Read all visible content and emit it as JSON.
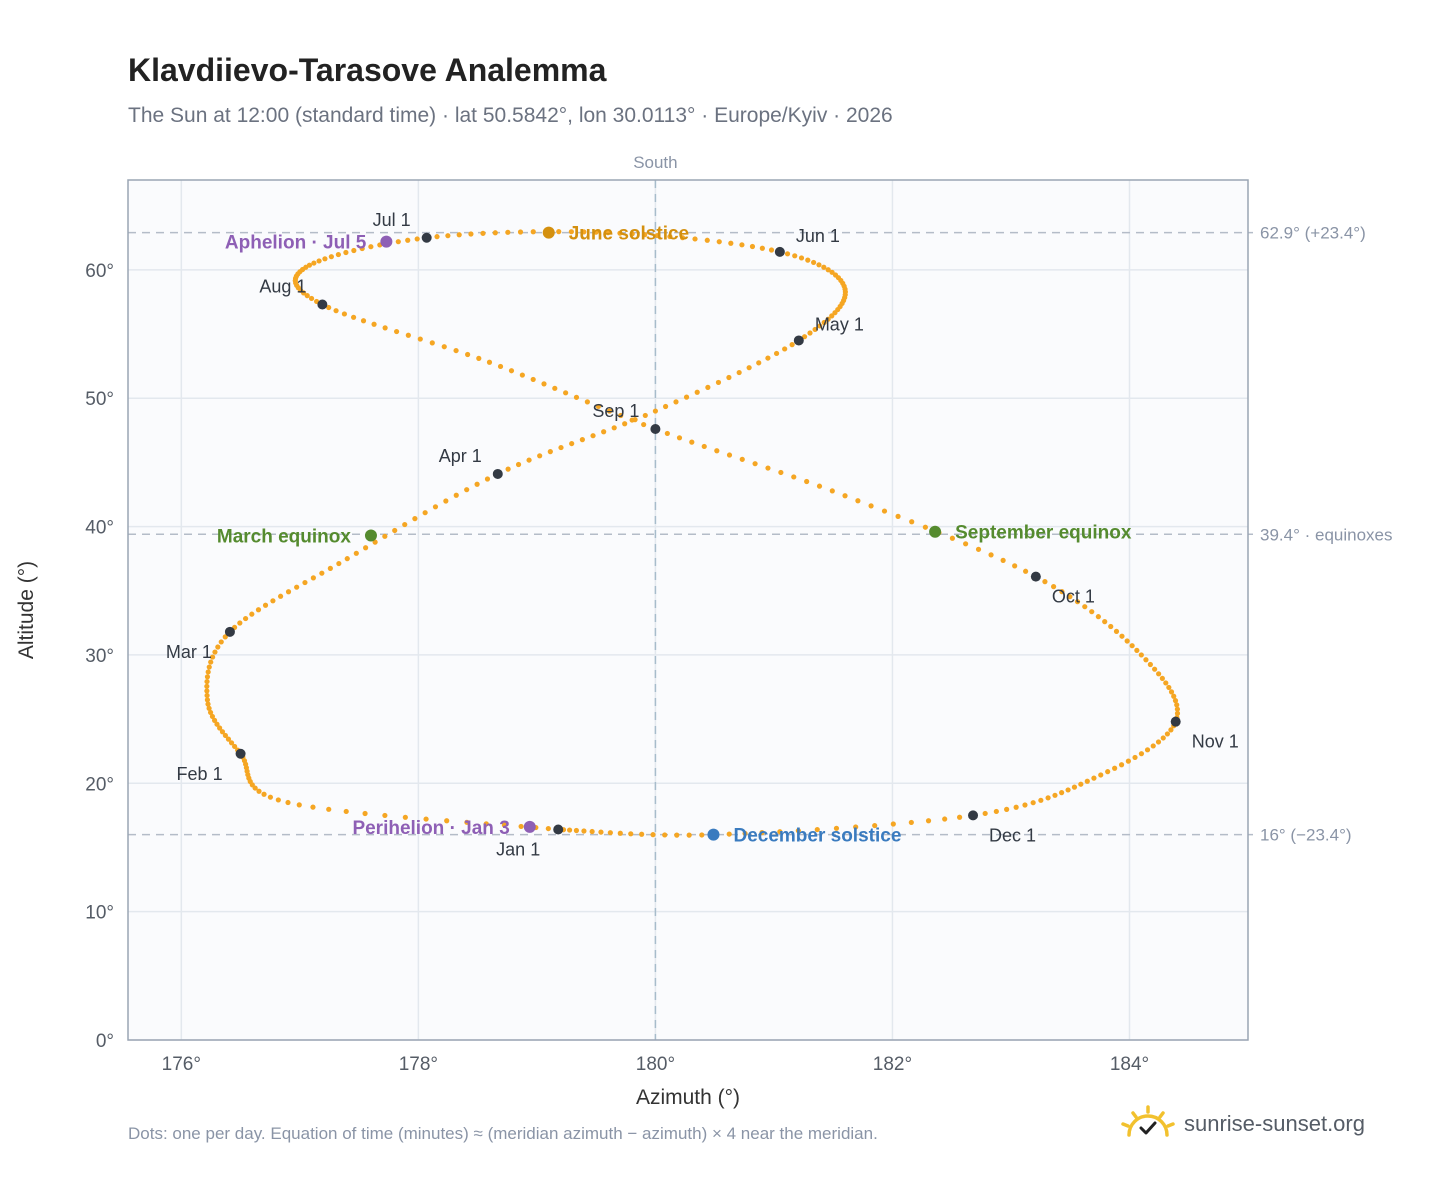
{
  "title": "Klavdiievo-Tarasove Analemma",
  "subtitle": "The Sun at 12:00 (standard time) · lat 50.5842°, lon 30.0113° · Europe/Kyiv · 2026",
  "footnote": "Dots: one per day. Equation of time (minutes) ≈ (meridian azimuth − azimuth) × 4 near the meridian.",
  "brand": {
    "text": "sunrise-sunset.org",
    "icon": "sun-check-icon"
  },
  "colors": {
    "curve": "#f5a623",
    "month": "#333a44",
    "june_solstice": "#d4900f",
    "december_solstice": "#3a7bbf",
    "equinox": "#558b2f",
    "apsis": "#8e5fb5",
    "grid": "#e3e8ee",
    "frame": "#9aa5b4"
  },
  "chart_data": {
    "type": "scatter",
    "title": "Klavdiievo-Tarasove Analemma",
    "xlabel": "Azimuth (°)",
    "ylabel": "Altitude (°)",
    "xlim": [
      175.55,
      185.0
    ],
    "ylim": [
      0,
      67
    ],
    "grid": true,
    "x_ticks": [
      176,
      178,
      180,
      182,
      184
    ],
    "x_tick_labels": [
      "176°",
      "178°",
      "180°",
      "182°",
      "184°"
    ],
    "y_ticks": [
      0,
      10,
      20,
      30,
      40,
      50,
      60
    ],
    "y_tick_labels": [
      "0°",
      "10°",
      "20°",
      "30°",
      "40°",
      "50°",
      "60°"
    ],
    "meridian": {
      "azimuth": 180,
      "label": "South"
    },
    "reference_lines": [
      {
        "altitude": 62.9,
        "label": "62.9° (+23.4°)"
      },
      {
        "altitude": 39.4,
        "label": "39.4° · equinoxes"
      },
      {
        "altitude": 16,
        "label": "16° (−23.4°)"
      }
    ],
    "month_markers": [
      {
        "label": "Jan 1",
        "azimuth": 179.18,
        "altitude": 16.4,
        "anchor": "below-left"
      },
      {
        "label": "Feb 1",
        "azimuth": 176.5,
        "altitude": 22.3,
        "anchor": "below-left"
      },
      {
        "label": "Mar 1",
        "azimuth": 176.41,
        "altitude": 31.8,
        "anchor": "below-left"
      },
      {
        "label": "Apr 1",
        "azimuth": 178.67,
        "altitude": 44.1,
        "anchor": "above-left"
      },
      {
        "label": "May 1",
        "azimuth": 181.21,
        "altitude": 54.5,
        "anchor": "above-right"
      },
      {
        "label": "Jun 1",
        "azimuth": 181.05,
        "altitude": 61.4,
        "anchor": "above-right"
      },
      {
        "label": "Jul 1",
        "azimuth": 178.07,
        "altitude": 62.5,
        "anchor": "above-left"
      },
      {
        "label": "Aug 1",
        "azimuth": 177.19,
        "altitude": 57.3,
        "anchor": "above-left"
      },
      {
        "label": "Sep 1",
        "azimuth": 180.0,
        "altitude": 47.6,
        "anchor": "above-left"
      },
      {
        "label": "Oct 1",
        "azimuth": 183.21,
        "altitude": 36.1,
        "anchor": "below-right"
      },
      {
        "label": "Nov 1",
        "azimuth": 184.39,
        "altitude": 24.8,
        "anchor": "below-right"
      },
      {
        "label": "Dec 1",
        "azimuth": 182.68,
        "altitude": 17.5,
        "anchor": "below-right"
      }
    ],
    "events": [
      {
        "label": "June solstice",
        "azimuth": 179.1,
        "altitude": 62.9,
        "color_key": "june_solstice",
        "anchor": "right"
      },
      {
        "label": "December solstice",
        "azimuth": 180.49,
        "altitude": 16.0,
        "color_key": "december_solstice",
        "anchor": "right"
      },
      {
        "label": "March equinox",
        "azimuth": 177.6,
        "altitude": 39.3,
        "color_key": "equinox",
        "anchor": "left"
      },
      {
        "label": "September equinox",
        "azimuth": 182.36,
        "altitude": 39.6,
        "color_key": "equinox",
        "anchor": "right"
      },
      {
        "label": "Aphelion · Jul 5",
        "azimuth": 177.73,
        "altitude": 62.2,
        "color_key": "apsis",
        "anchor": "left"
      },
      {
        "label": "Perihelion · Jan 3",
        "azimuth": 178.94,
        "altitude": 16.6,
        "color_key": "apsis",
        "anchor": "left"
      }
    ]
  }
}
